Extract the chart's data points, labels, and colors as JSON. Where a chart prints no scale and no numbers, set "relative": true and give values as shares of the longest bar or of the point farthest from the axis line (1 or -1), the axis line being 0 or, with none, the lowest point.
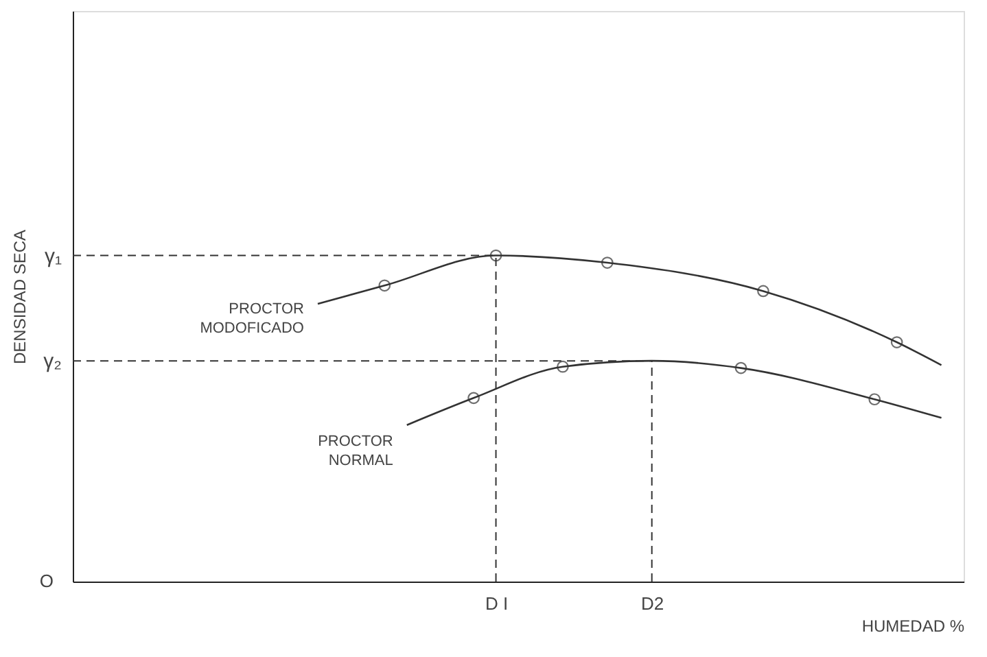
{
  "chart_data": {
    "type": "line",
    "relative": true,
    "xlabel": "HUMEDAD %",
    "ylabel": "DENSIDAD SECA",
    "categories": [
      null,
      null,
      null,
      null,
      null,
      null,
      null,
      null,
      null,
      null,
      null,
      null,
      null,
      null,
      null,
      null,
      null,
      null,
      null,
      "D I",
      null,
      null,
      null,
      null,
      null,
      null,
      "D2",
      null,
      null,
      null,
      null,
      null,
      null,
      null,
      null,
      null,
      null,
      null,
      null,
      null,
      null
    ],
    "series": [
      {
        "name": "PROCTOR MODOFICADO",
        "color": "#333333",
        "marker": "none",
        "line_style": "solid",
        "values": [
          null,
          null,
          null,
          null,
          null,
          null,
          null,
          null,
          null,
          null,
          null,
          0.852,
          null,
          null,
          0.908,
          null,
          null,
          null,
          null,
          1,
          null,
          null,
          null,
          null,
          0.978,
          null,
          null,
          null,
          null,
          null,
          null,
          0.891,
          null,
          null,
          null,
          null,
          null,
          0.734,
          null,
          0.664,
          null
        ]
      },
      {
        "name": "PROCTOR NORMAL",
        "color": "#333333",
        "marker": "none",
        "line_style": "solid",
        "values": [
          null,
          null,
          null,
          null,
          null,
          null,
          null,
          null,
          null,
          null,
          null,
          null,
          null,
          null,
          null,
          0.48,
          null,
          null,
          0.563,
          null,
          null,
          null,
          0.659,
          null,
          null,
          null,
          0.677,
          null,
          null,
          null,
          0.655,
          null,
          null,
          null,
          null,
          null,
          0.559,
          null,
          null,
          0.502,
          null
        ]
      },
      {
        "type": "scatter",
        "color": "#333333",
        "marker": "circle",
        "values": [
          null,
          null,
          null,
          null,
          null,
          null,
          null,
          null,
          null,
          null,
          null,
          null,
          null,
          null,
          0.908,
          null,
          null,
          null,
          null,
          1,
          null,
          null,
          null,
          null,
          0.978,
          null,
          null,
          null,
          null,
          null,
          null,
          0.891,
          null,
          null,
          null,
          null,
          null,
          0.734,
          null,
          null,
          null
        ]
      },
      {
        "type": "scatter",
        "color": "#333333",
        "marker": "circle",
        "values": [
          null,
          null,
          null,
          null,
          null,
          null,
          null,
          null,
          null,
          null,
          null,
          null,
          null,
          null,
          null,
          null,
          null,
          null,
          0.563,
          null,
          null,
          null,
          0.659,
          null,
          null,
          null,
          null,
          null,
          null,
          null,
          0.655,
          null,
          null,
          null,
          null,
          null,
          0.559,
          null,
          null,
          null,
          null
        ]
      }
    ],
    "ref_lines": [
      {
        "axis": "y",
        "value": 1,
        "label": "γ₁",
        "line_style": "dashed",
        "color": "#333333"
      },
      {
        "axis": "y",
        "value": 0.677,
        "label": "γ₂",
        "line_style": "dashed",
        "color": "#333333"
      },
      {
        "axis": "x",
        "value": "D I",
        "line_style": "dashed",
        "color": "#333333"
      },
      {
        "axis": "x",
        "value": "D2",
        "line_style": "dashed",
        "color": "#333333"
      }
    ],
    "annotations": [
      "O"
    ],
    "grid": false
  }
}
